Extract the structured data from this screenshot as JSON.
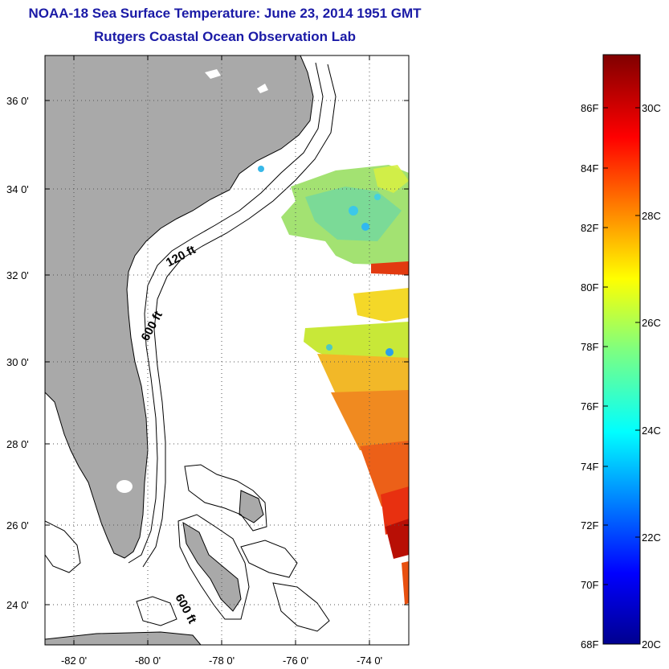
{
  "title": "NOAA-18 Sea Surface Temperature:  June 23, 2014 1951 GMT",
  "subtitle": "Rutgers Coastal Ocean Observation Lab",
  "map": {
    "lat_labels": [
      "36 0'",
      "34 0'",
      "32 0'",
      "30 0'",
      "28 0'",
      "26 0'",
      "24 0'"
    ],
    "lon_labels": [
      "-82 0'",
      "-80 0'",
      "-78 0'",
      "-76 0'",
      "-74 0'"
    ],
    "isobaths": [
      "120 ft",
      "600 ft",
      "600 ft"
    ],
    "land_color": "#a9a9a9",
    "gridlines": "dotted"
  },
  "colorbar": {
    "fahrenheit_labels": [
      "86F",
      "84F",
      "82F",
      "80F",
      "78F",
      "76F",
      "74F",
      "72F",
      "70F",
      "68F"
    ],
    "celsius_labels": [
      "30C",
      "28C",
      "26C",
      "24C",
      "22C",
      "20C"
    ],
    "range_c": [
      20,
      31
    ],
    "colormap": "jet"
  }
}
